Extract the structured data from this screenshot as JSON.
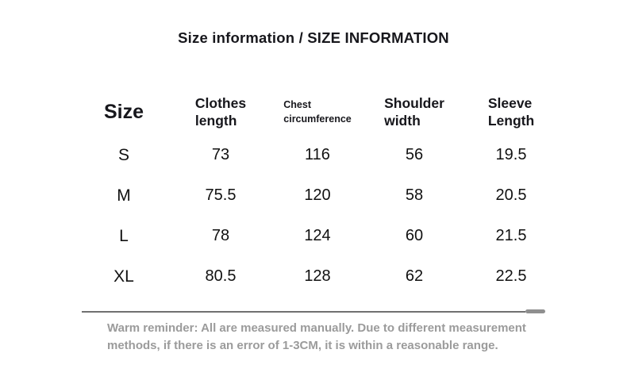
{
  "page": {
    "title": "Size information / SIZE INFORMATION"
  },
  "table": {
    "headers": [
      {
        "id": "size",
        "lines": [
          "Size"
        ]
      },
      {
        "id": "clothes-length",
        "lines": [
          "Clothes",
          "length"
        ]
      },
      {
        "id": "chest-circumference",
        "lines": [
          "Chest",
          "circumference"
        ]
      },
      {
        "id": "shoulder-width",
        "lines": [
          "Shoulder",
          "width"
        ]
      },
      {
        "id": "sleeve-length",
        "lines": [
          "Sleeve",
          "Length"
        ]
      }
    ],
    "rows": [
      {
        "cells": [
          "S",
          "73",
          "116",
          "56",
          "19.5"
        ]
      },
      {
        "cells": [
          "M",
          "75.5",
          "120",
          "58",
          "20.5"
        ]
      },
      {
        "cells": [
          "L",
          "78",
          "124",
          "60",
          "21.5"
        ]
      },
      {
        "cells": [
          "XL",
          "80.5",
          "128",
          "62",
          "22.5"
        ]
      }
    ]
  },
  "reminder": {
    "line1": "Warm reminder: All are measured manually. Due to different measurement",
    "line2": "methods, if there is an error of 1-3CM, it is within a reasonable range."
  },
  "colors": {
    "text": "#17171c",
    "data_text": "#111111",
    "muted_text": "#9b9b9b",
    "divider": "#707070",
    "pill": "#8f8f8f",
    "background": "#ffffff"
  }
}
